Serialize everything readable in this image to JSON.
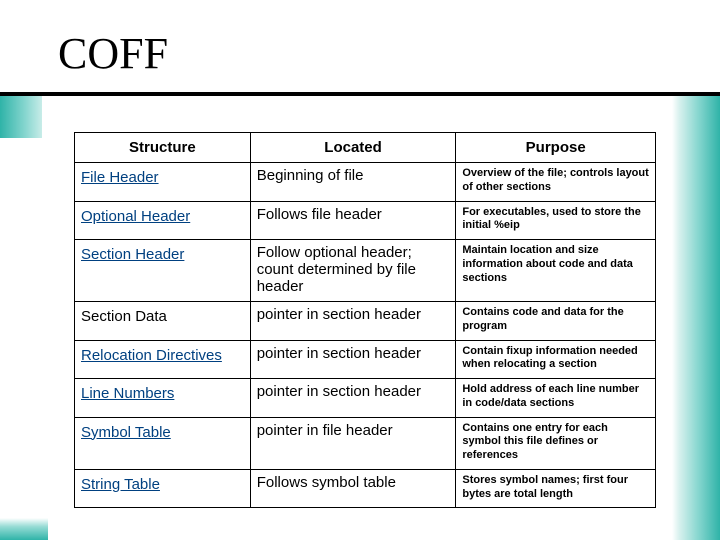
{
  "title": "COFF",
  "colors": {
    "link_color": "#004080",
    "border_color": "#000000",
    "teal": "#2fb3a8",
    "background": "#ffffff"
  },
  "table": {
    "headers": {
      "c1": "Structure",
      "c2": "Located",
      "c3": "Purpose"
    },
    "rows": [
      {
        "structure": "File Header",
        "is_link": true,
        "located": "Beginning of file",
        "purpose": "Overview of the file; controls layout of other sections"
      },
      {
        "structure": "Optional Header",
        "is_link": true,
        "located": "Follows file header",
        "purpose": "For executables, used to store the initial %eip"
      },
      {
        "structure": "Section Header",
        "is_link": true,
        "located": "Follow optional header; count determined by file header",
        "purpose": "Maintain location and size information about code and data sections"
      },
      {
        "structure": "Section Data",
        "is_link": false,
        "located": "pointer in section header",
        "purpose": "Contains code and data for the program"
      },
      {
        "structure": "Relocation Directives",
        "is_link": true,
        "located": "pointer in section header",
        "purpose": "Contain fixup information needed when relocating a section"
      },
      {
        "structure": "Line Numbers",
        "is_link": true,
        "located": "pointer in section header",
        "purpose": "Hold address of each line number in code/data sections"
      },
      {
        "structure": "Symbol Table",
        "is_link": true,
        "located": "pointer in file header",
        "purpose": "Contains one entry for each symbol this file defines or references"
      },
      {
        "structure": "String Table",
        "is_link": true,
        "located": "Follows symbol table",
        "purpose": "Stores symbol names; first four bytes are total length"
      }
    ]
  }
}
